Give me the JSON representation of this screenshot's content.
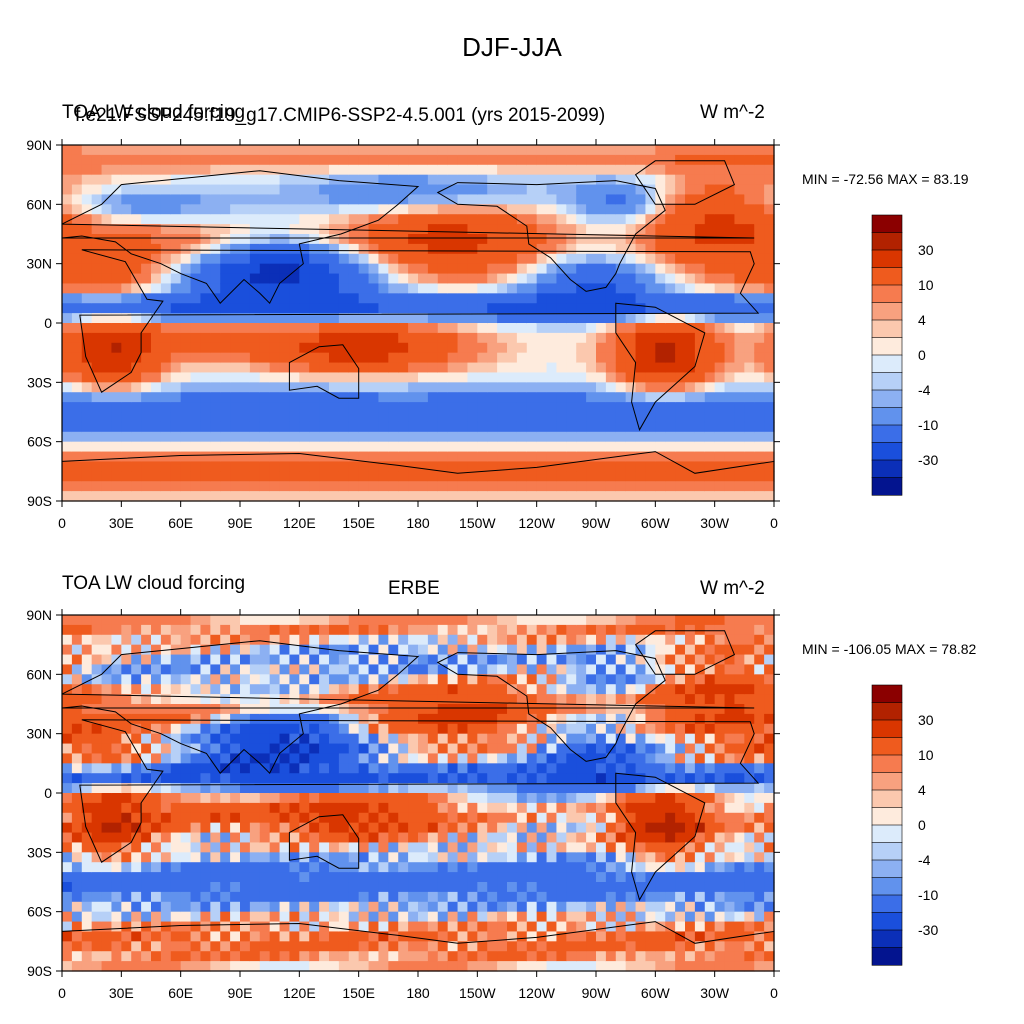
{
  "title": "DJF-JJA",
  "panels": [
    {
      "left": "TOA LW cloud forcing",
      "center": "f.e21.FSSP245.f19_g17.CMIP6-SSP2-4.5.001 (yrs 2015-2099)",
      "right": "W m^-2",
      "min_max": "MIN = -72.56 MAX =  83.19"
    },
    {
      "left": "TOA LW cloud forcing",
      "center": "ERBE",
      "right": "W m^-2",
      "min_max": "MIN = -106.05 MAX =  78.82"
    }
  ],
  "colorbar": {
    "colors": [
      "#8b0000",
      "#b22200",
      "#d93600",
      "#ef5b1e",
      "#f67b4f",
      "#f8a17f",
      "#fbc8ae",
      "#feebdd",
      "#dcebfb",
      "#b6d0f7",
      "#8cb0f2",
      "#6192ed",
      "#3b6ee8",
      "#1a4fdc",
      "#0b2fb8",
      "#03148f"
    ],
    "labels": [
      "30",
      "10",
      "4",
      "0",
      "-4",
      "-10",
      "-30"
    ]
  },
  "chart_data": [
    {
      "type": "heatmap",
      "title": "DJF-JJA",
      "subtitle": "f.e21.FSSP245.f19_g17.CMIP6-SSP2-4.5.001 (yrs 2015-2099)",
      "variable": "TOA LW cloud forcing",
      "units": "W m^-2",
      "min": -72.56,
      "max": 83.19,
      "x_ticks": [
        "0",
        "30E",
        "60E",
        "90E",
        "120E",
        "150E",
        "180",
        "150W",
        "120W",
        "90W",
        "60W",
        "30W",
        "0"
      ],
      "y_ticks": [
        "90N",
        "60N",
        "30N",
        "0",
        "30S",
        "60S",
        "90S"
      ],
      "contour_levels": [
        -30,
        -10,
        -4,
        0,
        4,
        10,
        30
      ]
    },
    {
      "type": "heatmap",
      "title": "DJF-JJA",
      "subtitle": "ERBE",
      "variable": "TOA LW cloud forcing",
      "units": "W m^-2",
      "min": -106.05,
      "max": 78.82,
      "x_ticks": [
        "0",
        "30E",
        "60E",
        "90E",
        "120E",
        "150E",
        "180",
        "150W",
        "120W",
        "90W",
        "60W",
        "30W",
        "0"
      ],
      "y_ticks": [
        "90N",
        "60N",
        "30N",
        "0",
        "30S",
        "60S",
        "90S"
      ],
      "contour_levels": [
        -30,
        -10,
        -4,
        0,
        4,
        10,
        30
      ]
    }
  ]
}
